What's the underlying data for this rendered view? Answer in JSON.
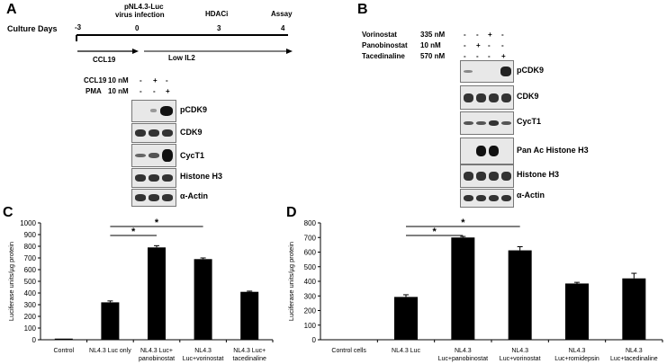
{
  "panel_a": {
    "label": "A",
    "culture_days_label": "Culture Days",
    "timeline": {
      "ticks": [
        "-3",
        "0",
        "3",
        "4"
      ],
      "events": [
        "pNL4.3-Luc\nvirus infection",
        "HDACi",
        "Assay"
      ],
      "infection_line1": "pNL4.3-Luc",
      "infection_line2": "virus infection",
      "hdaci": "HDACi",
      "assay": "Assay",
      "phase1": "CCL19",
      "phase2": "Low IL2"
    },
    "treatments": [
      {
        "name": "CCL19",
        "conc": "10 nM",
        "signs": [
          "-",
          "+",
          "-"
        ]
      },
      {
        "name": "PMA",
        "conc": "10 nM",
        "signs": [
          "-",
          "-",
          "+"
        ]
      }
    ],
    "blots": [
      "pCDK9",
      "CDK9",
      "CycT1",
      "Histone H3",
      "α-Actin"
    ]
  },
  "panel_b": {
    "label": "B",
    "treatments": [
      {
        "name": "Vorinostat",
        "conc": "335 nM",
        "signs": [
          "-",
          "-",
          "+",
          "-"
        ]
      },
      {
        "name": "Panobinostat",
        "conc": "10 nM",
        "signs": [
          "-",
          "+",
          "-",
          "-"
        ]
      },
      {
        "name": "Tacedinaline",
        "conc": "570 nM",
        "signs": [
          "-",
          "-",
          "-",
          "+"
        ]
      }
    ],
    "blots": [
      "pCDK9",
      "CDK9",
      "CycT1",
      "Pan Ac Histone H3",
      "Histone H3",
      "α-Actin"
    ]
  },
  "chart_data": [
    {
      "panel": "C",
      "type": "bar",
      "title": "",
      "ylabel": "Luciferase units/µg protein",
      "ylim": [
        0,
        1000
      ],
      "yticks": [
        0,
        100,
        200,
        300,
        400,
        500,
        600,
        700,
        800,
        900,
        1000
      ],
      "categories": [
        "Control",
        "NL4.3 Luc only",
        "NL4.3 Luc+\npanobinostat",
        "NL4.3\nLuc+vorinostat",
        "NL4.3 Luc+\ntacedinaline"
      ],
      "values": [
        0,
        320,
        790,
        690,
        410
      ],
      "errors": [
        0,
        12,
        15,
        10,
        6
      ],
      "significance": [
        {
          "from": 1,
          "to": 2,
          "label": "*"
        },
        {
          "from": 1,
          "to": 3,
          "label": "*"
        }
      ]
    },
    {
      "panel": "D",
      "type": "bar",
      "title": "",
      "ylabel": "Luciferase units/µg protein",
      "ylim": [
        0,
        800
      ],
      "yticks": [
        0,
        100,
        200,
        300,
        400,
        500,
        600,
        700,
        800
      ],
      "categories": [
        "Control cells",
        "NL4.3 Luc",
        "NL4.3\nLuc+panobinostat",
        "NL4.3\nLuc+vorinostat",
        "NL4.3\nLuc+romidepsin",
        "NL4.3\nLuc+tacedinaline"
      ],
      "values": [
        3,
        293,
        700,
        612,
        385,
        420
      ],
      "errors": [
        0,
        15,
        7,
        25,
        8,
        35
      ],
      "significance": [
        {
          "from": 1,
          "to": 2,
          "label": "*"
        },
        {
          "from": 1,
          "to": 3,
          "label": "*"
        }
      ]
    }
  ]
}
